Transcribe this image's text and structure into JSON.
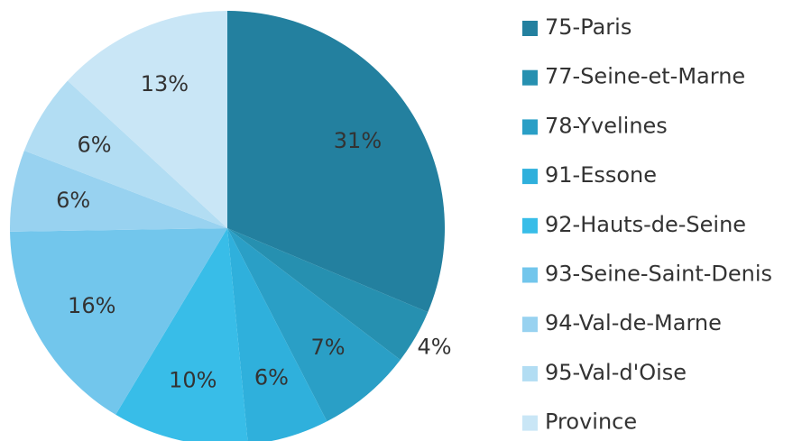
{
  "chart_data": {
    "type": "pie",
    "categories": [
      "75-Paris",
      "77-Seine-et-Marne",
      "78-Yvelines",
      "91-Essone",
      "92-Hauts-de-Seine",
      "93-Seine-Saint-Denis",
      "94-Val-de-Marne",
      "95-Val-d'Oise",
      "Province"
    ],
    "values": [
      31,
      4,
      7,
      6,
      10,
      16,
      6,
      6,
      13
    ],
    "value_labels": [
      "31%",
      "4%",
      "7%",
      "6%",
      "10%",
      "16%",
      "6%",
      "6%",
      "13%"
    ],
    "colors": [
      "#23809f",
      "#2690b0",
      "#2a9fc6",
      "#2fb0dc",
      "#38bde8",
      "#72c6ec",
      "#98d2f0",
      "#b2ddf3",
      "#c9e6f6"
    ],
    "legend": "right"
  }
}
